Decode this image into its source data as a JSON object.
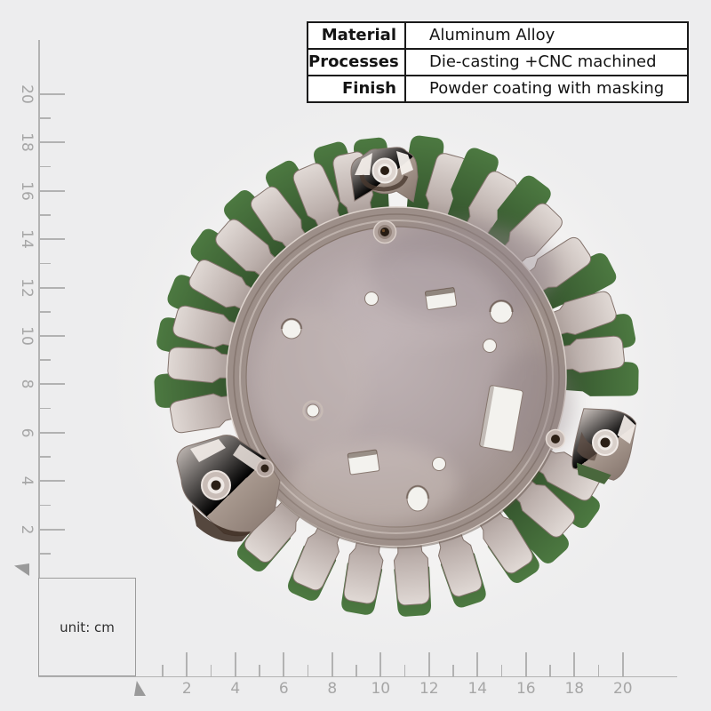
{
  "window": {
    "background": "#ededee"
  },
  "spec_table": {
    "rows": [
      {
        "label": "Material",
        "value": "Aluminum Alloy"
      },
      {
        "label": "Processes",
        "value": "Die-casting +CNC machined"
      },
      {
        "label": "Finish",
        "value": "Powder coating with masking"
      }
    ],
    "border_color": "#1a1a1a"
  },
  "rulers": {
    "unit_label": "unit: cm",
    "vertical": {
      "labels": [
        "20",
        "18",
        "16",
        "14",
        "12",
        "10",
        "8",
        "6",
        "4",
        "2"
      ]
    },
    "horizontal": {
      "labels": [
        "2",
        "4",
        "6",
        "8",
        "10",
        "12",
        "14",
        "16",
        "18",
        "20"
      ]
    },
    "line_color": "#b3b3b3",
    "label_color": "#a6a6a6"
  },
  "part_colors": {
    "metal_light": "#d8cec9",
    "metal_mid": "#b0a3a0",
    "metal_dark": "#8a7a72",
    "coating_green": "#4a6b3c",
    "hole_backdrop": "#f3f2ee"
  }
}
